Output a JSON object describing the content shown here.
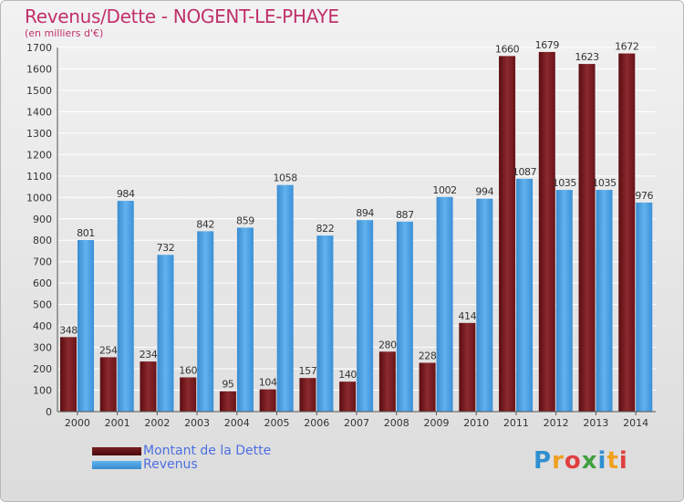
{
  "header": {
    "title": "Revenus/Dette - NOGENT-LE-PHAYE",
    "subtitle": "(en milliers d'€)"
  },
  "legend": {
    "items": [
      {
        "label": "Montant de la Dette",
        "color": "#7a1f22"
      },
      {
        "label": "Revenus",
        "color": "#4a9fe0"
      }
    ]
  },
  "logo": {
    "letters": [
      {
        "char": "P",
        "color": "#2f8fd0"
      },
      {
        "char": "r",
        "color": "#f0a020"
      },
      {
        "char": "o",
        "color": "#e04040"
      },
      {
        "char": "x",
        "color": "#40a040"
      },
      {
        "char": "i",
        "color": "#2f8fd0"
      },
      {
        "char": "t",
        "color": "#f0a020"
      },
      {
        "char": "i",
        "color": "#e04040"
      }
    ]
  },
  "chart_data": {
    "type": "bar",
    "title": "Revenus/Dette - NOGENT-LE-PHAYE",
    "subtitle": "(en milliers d'€)",
    "categories": [
      "2000",
      "2001",
      "2002",
      "2003",
      "2004",
      "2005",
      "2006",
      "2007",
      "2008",
      "2009",
      "2010",
      "2011",
      "2012",
      "2013",
      "2014"
    ],
    "series": [
      {
        "name": "Montant de la Dette",
        "color": "#7a1f22",
        "values": [
          348,
          254,
          234,
          160,
          95,
          104,
          157,
          140,
          280,
          228,
          414,
          1660,
          1679,
          1623,
          1672
        ]
      },
      {
        "name": "Revenus",
        "color": "#4a9fe0",
        "values": [
          801,
          984,
          732,
          842,
          859,
          1058,
          822,
          894,
          887,
          1002,
          994,
          1087,
          1035,
          1035,
          976
        ]
      }
    ],
    "ylim": [
      0,
      1700
    ],
    "yticks": [
      0,
      100,
      200,
      300,
      400,
      500,
      600,
      700,
      800,
      900,
      1000,
      1100,
      1200,
      1300,
      1400,
      1500,
      1600,
      1700
    ],
    "grid": true,
    "legend_position": "bottom-left"
  }
}
